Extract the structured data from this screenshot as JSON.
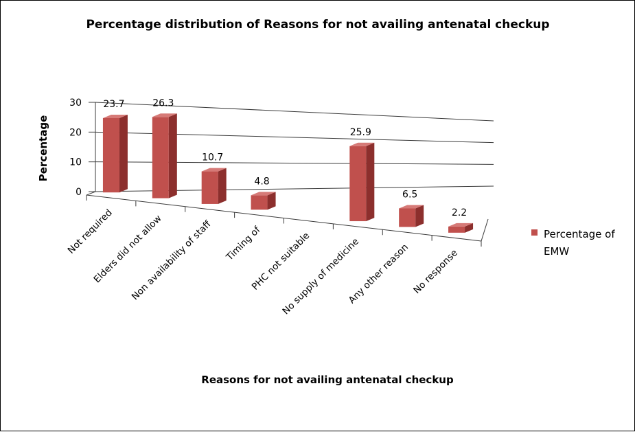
{
  "chart_data": {
    "type": "bar",
    "title": "Percentage distribution of Reasons for not availing antenatal checkup",
    "xlabel": "Reasons for not availing antenatal checkup",
    "ylabel": "Percentage",
    "ylim": [
      0,
      30
    ],
    "yticks": [
      0,
      10,
      20,
      30
    ],
    "grid": true,
    "legend_position": "right",
    "categories": [
      "Not required",
      "Elders did not allow",
      "Non availability of staff",
      "Timing of",
      "PHC not suitable",
      "No supply of medicine",
      "Any other reason",
      "No response"
    ],
    "series": [
      {
        "name": "Percentage of EMW",
        "legend_lines": [
          "Percentage of",
          "EMW"
        ],
        "color": "#c0504d",
        "values": [
          23.7,
          26.3,
          10.7,
          4.8,
          null,
          25.9,
          6.5,
          2.2
        ],
        "labels": [
          "23.7",
          "26.3",
          "10.7",
          "4.8",
          "",
          "25.9",
          "6.5",
          "2.2"
        ]
      }
    ]
  }
}
